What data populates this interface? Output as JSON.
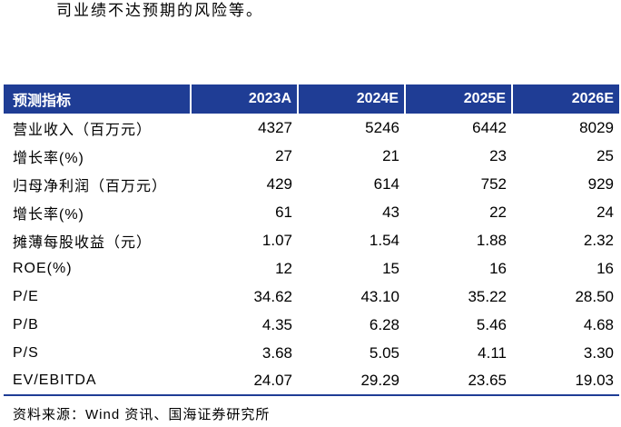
{
  "intro_text": "司业绩不达预期的风险等。",
  "table": {
    "headers": [
      "预测指标",
      "2023A",
      "2024E",
      "2025E",
      "2026E"
    ],
    "rows": [
      {
        "label": "营业收入（百万元）",
        "values": [
          "4327",
          "5246",
          "6442",
          "8029"
        ]
      },
      {
        "label": "增长率(%)",
        "values": [
          "27",
          "21",
          "23",
          "25"
        ]
      },
      {
        "label": "归母净利润（百万元）",
        "values": [
          "429",
          "614",
          "752",
          "929"
        ]
      },
      {
        "label": "增长率(%)",
        "values": [
          "61",
          "43",
          "22",
          "24"
        ]
      },
      {
        "label": "摊薄每股收益（元）",
        "values": [
          "1.07",
          "1.54",
          "1.88",
          "2.32"
        ]
      },
      {
        "label": "ROE(%)",
        "values": [
          "12",
          "15",
          "16",
          "16"
        ]
      },
      {
        "label": "P/E",
        "values": [
          "34.62",
          "43.10",
          "35.22",
          "28.50"
        ]
      },
      {
        "label": "P/B",
        "values": [
          "4.35",
          "6.28",
          "5.46",
          "4.68"
        ]
      },
      {
        "label": "P/S",
        "values": [
          "3.68",
          "5.05",
          "4.11",
          "3.30"
        ]
      },
      {
        "label": "EV/EBITDA",
        "values": [
          "24.07",
          "29.29",
          "23.65",
          "19.03"
        ]
      }
    ]
  },
  "source_text": "资料来源：Wind 资讯、国海证券研究所",
  "colors": {
    "header_bg": "#1f3d95",
    "header_text": "#ffffff"
  }
}
